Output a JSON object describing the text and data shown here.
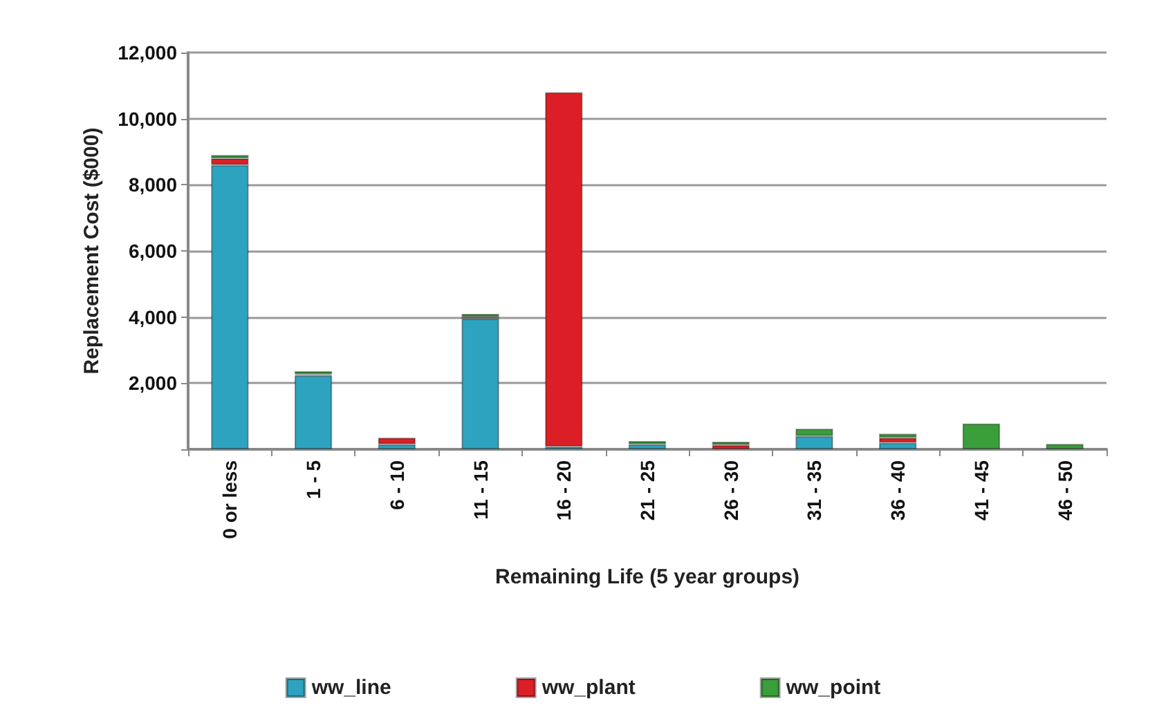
{
  "chart_data": {
    "type": "bar",
    "stacked": true,
    "xlabel": "Remaining Life (5 year groups)",
    "ylabel": "Replacement Cost ($000)",
    "categories": [
      "0 or less",
      "1 - 5",
      "6 - 10",
      "11 - 15",
      "16 - 20",
      "21 - 25",
      "26 - 30",
      "31 - 35",
      "36 - 40",
      "41 - 45",
      "46 - 50"
    ],
    "series": [
      {
        "name": "ww_line",
        "color": "#2ea3bf",
        "values": [
          8600,
          2230,
          150,
          3950,
          80,
          150,
          null,
          400,
          200,
          null,
          null
        ]
      },
      {
        "name": "ww_plant",
        "color": "#dc1f26",
        "values": [
          200,
          40,
          200,
          50,
          10720,
          null,
          130,
          null,
          150,
          null,
          null
        ]
      },
      {
        "name": "ww_point",
        "color": "#3a9e3a",
        "values": [
          100,
          90,
          null,
          100,
          null,
          100,
          100,
          220,
          120,
          780,
          160
        ]
      }
    ],
    "ylim": [
      0,
      12000
    ],
    "yticks": [
      {
        "value": 0,
        "label": null
      },
      {
        "value": 2000,
        "label": "2,000"
      },
      {
        "value": 4000,
        "label": "4,000"
      },
      {
        "value": 6000,
        "label": "6,000"
      },
      {
        "value": 8000,
        "label": "8,000"
      },
      {
        "value": 10000,
        "label": "10,000"
      },
      {
        "value": 12000,
        "label": "12,000"
      }
    ],
    "grid": "y",
    "legend": "bottom"
  }
}
